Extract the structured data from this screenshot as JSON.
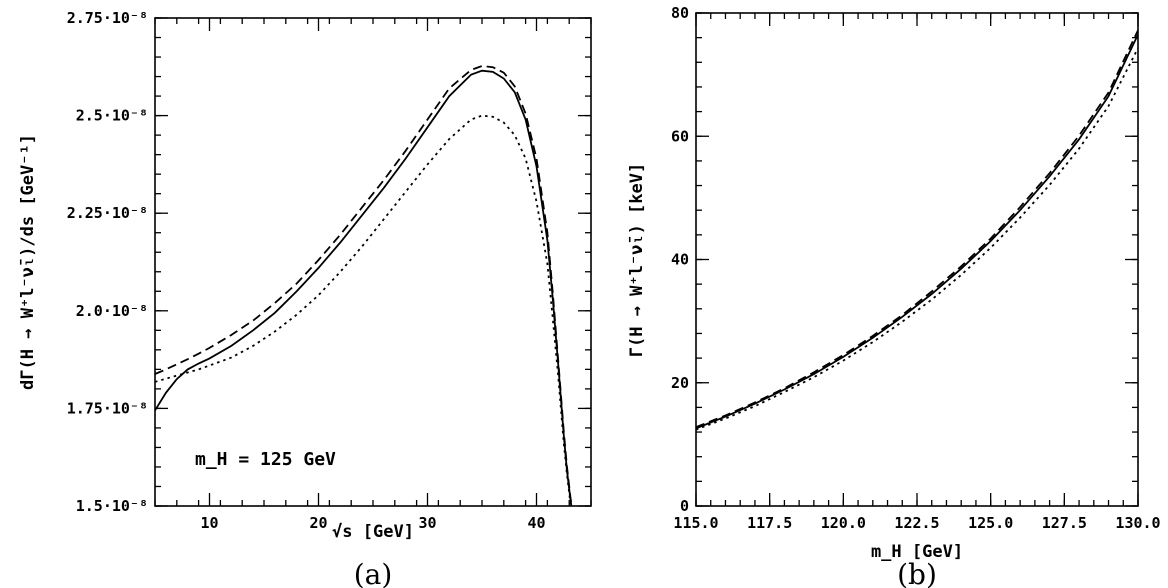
{
  "chart_data": [
    {
      "type": "line",
      "panel_label": "(a)",
      "xlabel": "√s  [GeV]",
      "ylabel": "dΓ(H → W⁺l⁻ν̄ₗ)/ds  [GeV⁻¹]",
      "annotation": "m_H = 125 GeV",
      "xlim": [
        5,
        45
      ],
      "ylim": [
        1.5e-08,
        2.75e-08
      ],
      "x_ticks": [
        10,
        20,
        30,
        40
      ],
      "x_tick_labels": [
        "10",
        "20",
        "30",
        "40"
      ],
      "y_ticks": [
        1.5e-08,
        1.75e-08,
        2e-08,
        2.25e-08,
        2.5e-08,
        2.75e-08
      ],
      "y_tick_labels": [
        "1.5·10⁻⁸",
        "1.75·10⁻⁸",
        "2.0·10⁻⁸",
        "2.25·10⁻⁸",
        "2.5·10⁻⁸",
        "2.75·10⁻⁸"
      ],
      "grid": false,
      "series": [
        {
          "style": "solid",
          "x": [
            5,
            6,
            7,
            8,
            9,
            10,
            12,
            14,
            16,
            18,
            20,
            22,
            24,
            26,
            28,
            30,
            32,
            34,
            35,
            36,
            37,
            38,
            39,
            40,
            41,
            41.5,
            42,
            42.5,
            42.8,
            43.1,
            43.3,
            43.5
          ],
          "y": [
            1.745e-08,
            1.79e-08,
            1.825e-08,
            1.85e-08,
            1.865e-08,
            1.878e-08,
            1.91e-08,
            1.95e-08,
            1.995e-08,
            2.05e-08,
            2.11e-08,
            2.175e-08,
            2.245e-08,
            2.315e-08,
            2.39e-08,
            2.47e-08,
            2.55e-08,
            2.605e-08,
            2.615e-08,
            2.612e-08,
            2.595e-08,
            2.56e-08,
            2.49e-08,
            2.37e-08,
            2.18e-08,
            2.03e-08,
            1.86e-08,
            1.68e-08,
            1.59e-08,
            1.52e-08,
            1.48e-08,
            1.44e-08
          ]
        },
        {
          "style": "dashed",
          "x": [
            5,
            6,
            7,
            8,
            9,
            10,
            12,
            14,
            16,
            18,
            20,
            22,
            24,
            26,
            28,
            30,
            32,
            34,
            35,
            36,
            37,
            38,
            39,
            40,
            41,
            41.5,
            42,
            42.5,
            42.8,
            43.1,
            43.3,
            43.5
          ],
          "y": [
            1.838e-08,
            1.85e-08,
            1.863e-08,
            1.876e-08,
            1.89e-08,
            1.905e-08,
            1.938e-08,
            1.975e-08,
            2.02e-08,
            2.07e-08,
            2.13e-08,
            2.195e-08,
            2.265e-08,
            2.335e-08,
            2.41e-08,
            2.49e-08,
            2.57e-08,
            2.617e-08,
            2.627e-08,
            2.624e-08,
            2.61e-08,
            2.575e-08,
            2.505e-08,
            2.39e-08,
            2.2e-08,
            2.045e-08,
            1.87e-08,
            1.69e-08,
            1.6e-08,
            1.525e-08,
            1.485e-08,
            1.445e-08
          ]
        },
        {
          "style": "dotted",
          "x": [
            5,
            6,
            7,
            8,
            9,
            10,
            12,
            14,
            16,
            18,
            20,
            22,
            24,
            26,
            28,
            30,
            32,
            34,
            35,
            36,
            37,
            38,
            39,
            40,
            41,
            41.5,
            42,
            42.5,
            42.8,
            43.1,
            43.3,
            43.5
          ],
          "y": [
            1.818e-08,
            1.826e-08,
            1.834e-08,
            1.842e-08,
            1.85e-08,
            1.86e-08,
            1.88e-08,
            1.91e-08,
            1.947e-08,
            1.99e-08,
            2.04e-08,
            2.1e-08,
            2.165e-08,
            2.235e-08,
            2.305e-08,
            2.375e-08,
            2.44e-08,
            2.49e-08,
            2.5e-08,
            2.497e-08,
            2.482e-08,
            2.45e-08,
            2.39e-08,
            2.28e-08,
            2.12e-08,
            1.98e-08,
            1.83e-08,
            1.66e-08,
            1.58e-08,
            1.51e-08,
            1.47e-08,
            1.43e-08
          ]
        }
      ]
    },
    {
      "type": "line",
      "panel_label": "(b)",
      "xlabel": "m_H  [GeV]",
      "ylabel": "Γ(H → W⁺l⁻ν̄ₗ)  [keV]",
      "xlim": [
        115.0,
        130.0
      ],
      "ylim": [
        0,
        80
      ],
      "x_ticks": [
        115.0,
        117.5,
        120.0,
        122.5,
        125.0,
        127.5,
        130.0
      ],
      "x_tick_labels": [
        "115.0",
        "117.5",
        "120.0",
        "122.5",
        "125.0",
        "127.5",
        "130.0"
      ],
      "y_ticks": [
        0,
        20,
        40,
        60,
        80
      ],
      "y_tick_labels": [
        "0",
        "20",
        "40",
        "60",
        "80"
      ],
      "grid": false,
      "series": [
        {
          "style": "solid",
          "x": [
            115,
            116,
            117,
            118,
            119,
            120,
            121,
            122,
            123,
            124,
            125,
            126,
            127,
            128,
            129,
            130
          ],
          "y": [
            12.6,
            14.5,
            16.6,
            18.9,
            21.4,
            24.2,
            27.3,
            30.7,
            34.4,
            38.5,
            43.0,
            48.0,
            53.5,
            59.5,
            66.5,
            76.5
          ]
        },
        {
          "style": "dashed",
          "x": [
            115,
            116,
            117,
            118,
            119,
            120,
            121,
            122,
            123,
            124,
            125,
            126,
            127,
            128,
            129,
            130
          ],
          "y": [
            12.8,
            14.7,
            16.8,
            19.1,
            21.7,
            24.5,
            27.6,
            31.0,
            34.8,
            38.9,
            43.4,
            48.5,
            54.0,
            60.1,
            67.1,
            77.2
          ]
        },
        {
          "style": "dotted",
          "x": [
            115,
            116,
            117,
            118,
            119,
            120,
            121,
            122,
            123,
            124,
            125,
            126,
            127,
            128,
            129,
            130
          ],
          "y": [
            12.4,
            14.2,
            16.2,
            18.5,
            20.9,
            23.6,
            26.6,
            29.9,
            33.5,
            37.5,
            41.9,
            46.8,
            52.1,
            58.0,
            64.9,
            74.3
          ]
        }
      ]
    }
  ]
}
